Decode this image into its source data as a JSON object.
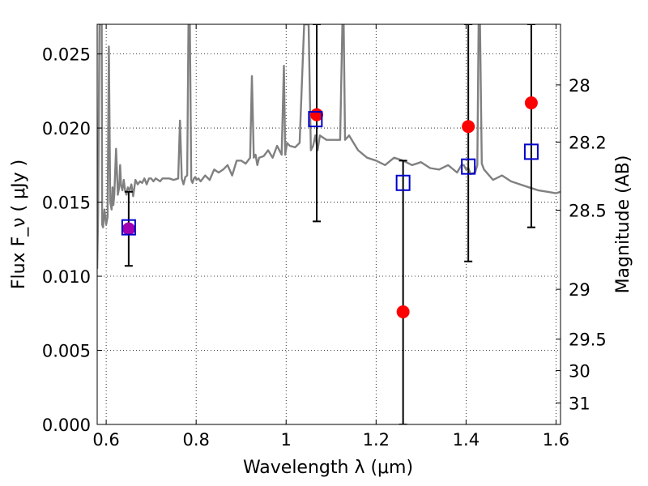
{
  "chart_data": {
    "type": "scatter",
    "title": "",
    "xlabel": "Wavelength  λ (μm)",
    "ylabel": "Flux  F_ν  ( μJy )",
    "ylabel_right": "Magnitude (AB)",
    "xlim": [
      0.58,
      1.61
    ],
    "ylim": [
      0,
      0.027
    ],
    "grid": true,
    "legend": "none",
    "x_ticks": [
      {
        "value": 0.6,
        "label": "0.6"
      },
      {
        "value": 0.8,
        "label": "0.8"
      },
      {
        "value": 1.0,
        "label": "1"
      },
      {
        "value": 1.2,
        "label": "1.2"
      },
      {
        "value": 1.4,
        "label": "1.4"
      },
      {
        "value": 1.6,
        "label": "1.6"
      }
    ],
    "y_ticks": [
      {
        "value": 0.0,
        "label": "0.000"
      },
      {
        "value": 0.005,
        "label": "0.005"
      },
      {
        "value": 0.01,
        "label": "0.010"
      },
      {
        "value": 0.015,
        "label": "0.015"
      },
      {
        "value": 0.02,
        "label": "0.020"
      },
      {
        "value": 0.025,
        "label": "0.025"
      }
    ],
    "right_ticks": [
      {
        "value": 28,
        "label": "28"
      },
      {
        "value": 28.2,
        "label": "28.2"
      },
      {
        "value": 28.5,
        "label": "28.5"
      },
      {
        "value": 29,
        "label": "29"
      },
      {
        "value": 29.5,
        "label": "29.5"
      },
      {
        "value": 30,
        "label": "30"
      },
      {
        "value": 31,
        "label": "31"
      }
    ],
    "colors": {
      "spectrum": "#808080",
      "observed": "#ff0000",
      "model": "#0000cc",
      "first_point": "#a000b0",
      "errorbar": "#000000"
    },
    "series": [
      {
        "kind": "spectrum",
        "x": [
          0.58,
          0.582,
          0.585,
          0.59,
          0.591,
          0.593,
          0.596,
          0.6,
          0.603,
          0.606,
          0.609,
          0.612,
          0.614,
          0.616,
          0.618,
          0.622,
          0.626,
          0.629,
          0.631,
          0.633,
          0.636,
          0.639,
          0.642,
          0.645,
          0.648,
          0.652,
          0.656,
          0.66,
          0.665,
          0.67,
          0.675,
          0.68,
          0.685,
          0.69,
          0.695,
          0.7,
          0.705,
          0.71,
          0.715,
          0.72,
          0.725,
          0.73,
          0.74,
          0.75,
          0.76,
          0.764,
          0.768,
          0.772,
          0.776,
          0.78,
          0.783,
          0.786,
          0.789,
          0.792,
          0.795,
          0.798,
          0.801,
          0.805,
          0.81,
          0.82,
          0.83,
          0.84,
          0.85,
          0.86,
          0.87,
          0.88,
          0.89,
          0.9,
          0.91,
          0.92,
          0.924,
          0.928,
          0.932,
          0.936,
          0.94,
          0.95,
          0.96,
          0.97,
          0.98,
          0.99,
          0.995,
          0.998,
          1.002,
          1.008,
          1.02,
          1.03,
          1.04,
          1.05,
          1.055,
          1.06,
          1.065,
          1.07,
          1.075,
          1.08,
          1.09,
          1.1,
          1.12,
          1.125,
          1.128,
          1.131,
          1.134,
          1.14,
          1.15,
          1.16,
          1.18,
          1.2,
          1.22,
          1.24,
          1.26,
          1.28,
          1.3,
          1.32,
          1.34,
          1.36,
          1.38,
          1.39,
          1.395,
          1.4,
          1.405,
          1.41,
          1.42,
          1.425,
          1.428,
          1.431,
          1.435,
          1.44,
          1.46,
          1.48,
          1.5,
          1.52,
          1.54,
          1.56,
          1.58,
          1.6,
          1.61
        ],
        "y": [
          0.0105,
          0.014,
          0.027,
          0.027,
          0.0135,
          0.0133,
          0.0145,
          0.0135,
          0.014,
          0.0255,
          0.015,
          0.0145,
          0.016,
          0.0148,
          0.0155,
          0.0186,
          0.0155,
          0.016,
          0.0175,
          0.0162,
          0.0158,
          0.0165,
          0.0158,
          0.0155,
          0.016,
          0.0158,
          0.0162,
          0.0154,
          0.0165,
          0.0162,
          0.0164,
          0.0163,
          0.0166,
          0.0162,
          0.0166,
          0.0166,
          0.0164,
          0.0166,
          0.0165,
          0.0164,
          0.0166,
          0.0166,
          0.0166,
          0.0165,
          0.0166,
          0.0205,
          0.0166,
          0.0162,
          0.0167,
          0.0168,
          0.027,
          0.027,
          0.0165,
          0.0163,
          0.0166,
          0.0167,
          0.0165,
          0.0166,
          0.0164,
          0.0168,
          0.0165,
          0.0172,
          0.017,
          0.0172,
          0.0175,
          0.0168,
          0.0178,
          0.0178,
          0.0176,
          0.018,
          0.0235,
          0.018,
          0.0182,
          0.0175,
          0.018,
          0.0181,
          0.0185,
          0.018,
          0.0188,
          0.0182,
          0.0242,
          0.0182,
          0.019,
          0.0188,
          0.0187,
          0.019,
          0.027,
          0.027,
          0.0185,
          0.0188,
          0.0195,
          0.0185,
          0.0195,
          0.0194,
          0.0192,
          0.0192,
          0.0192,
          0.027,
          0.027,
          0.0192,
          0.0193,
          0.0195,
          0.019,
          0.0185,
          0.018,
          0.0178,
          0.0175,
          0.018,
          0.0178,
          0.0175,
          0.0177,
          0.0173,
          0.0172,
          0.0175,
          0.017,
          0.0175,
          0.0175,
          0.0172,
          0.0173,
          0.0169,
          0.017,
          0.0175,
          0.027,
          0.027,
          0.0176,
          0.0172,
          0.0165,
          0.0168,
          0.0164,
          0.0162,
          0.016,
          0.0158,
          0.0157,
          0.0156,
          0.0157
        ]
      },
      {
        "kind": "observed",
        "name": "",
        "points": [
          {
            "x": 0.65,
            "y": 0.0132,
            "err_low": 0.0107,
            "err_high": 0.0157
          },
          {
            "x": 1.068,
            "y": 0.0209,
            "err_low": 0.0137,
            "err_high": 0.027
          },
          {
            "x": 1.26,
            "y": 0.0076,
            "err_low": 0.0,
            "err_high": 0.0178
          },
          {
            "x": 1.405,
            "y": 0.0201,
            "err_low": 0.011,
            "err_high": 0.027
          },
          {
            "x": 1.545,
            "y": 0.0217,
            "err_low": 0.0133,
            "err_high": 0.027
          }
        ]
      },
      {
        "kind": "model",
        "name": "",
        "points": [
          {
            "x": 0.65,
            "y": 0.0133
          },
          {
            "x": 1.065,
            "y": 0.0206
          },
          {
            "x": 1.26,
            "y": 0.0163
          },
          {
            "x": 1.405,
            "y": 0.0174
          },
          {
            "x": 1.545,
            "y": 0.0184
          }
        ]
      }
    ]
  }
}
